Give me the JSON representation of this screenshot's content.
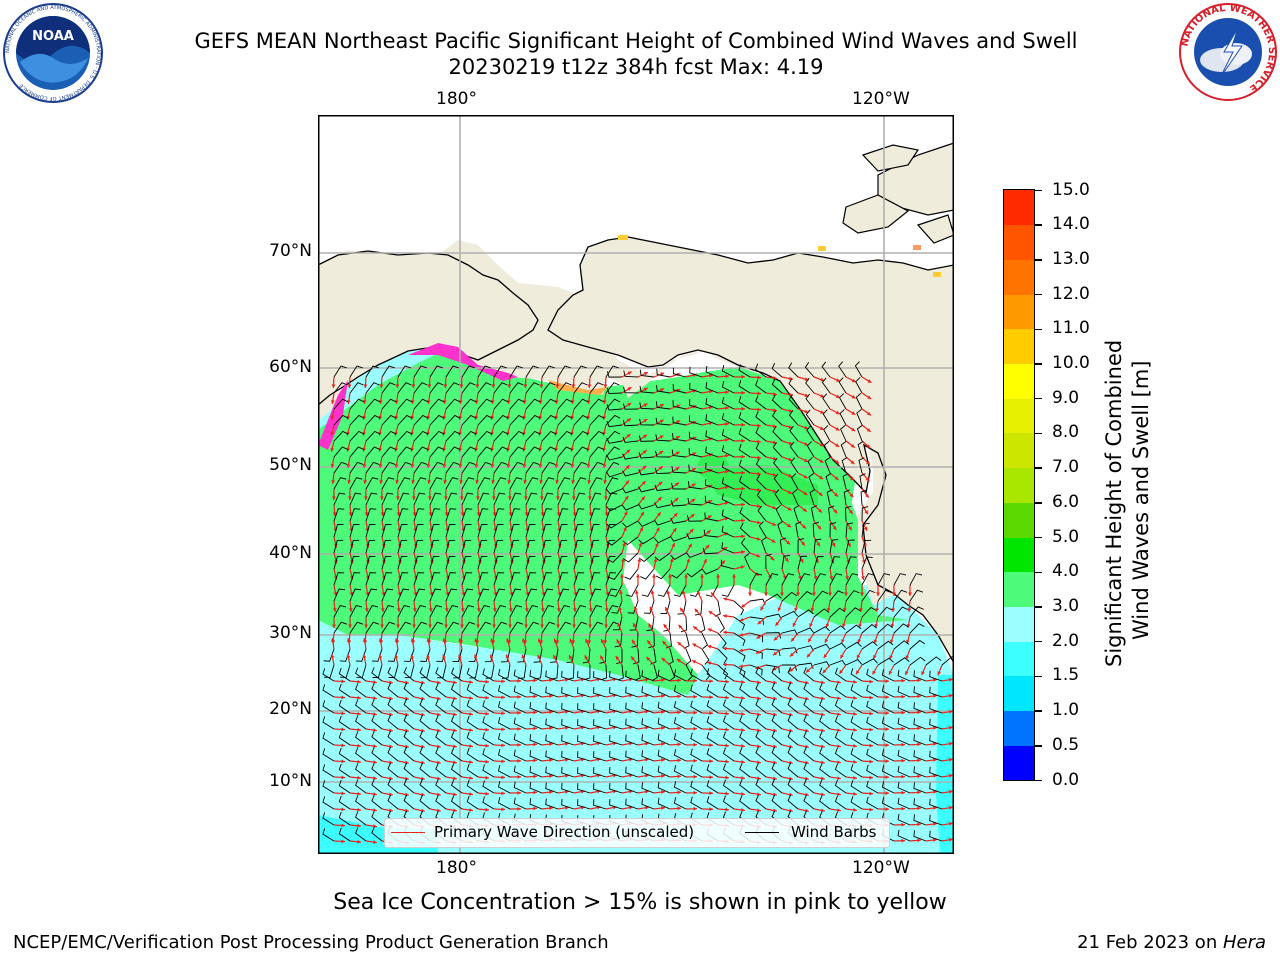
{
  "header": {
    "title_line1": "GEFS MEAN Northeast Pacific Significant Height of Combined Wind Waves and Swell",
    "title_line2": "20230219 t12z 384h fcst   Max: 4.19"
  },
  "logos": {
    "noaa": {
      "icon": "noaa-logo-icon",
      "text": "NOAA",
      "ring_text": "NATIONAL OCEANIC AND ATMOSPHERIC ADMINISTRATION · U.S. DEPARTMENT OF COMMERCE"
    },
    "nws": {
      "icon": "nws-logo-icon",
      "ring_text": "NATIONAL WEATHER SERVICE"
    }
  },
  "map": {
    "lon_labels": [
      "180°",
      "120°W"
    ],
    "lat_labels": [
      "70°N",
      "60°N",
      "50°N",
      "40°N",
      "30°N",
      "20°N",
      "10°N"
    ],
    "colors": {
      "land": "#efecdc",
      "grid": "#b0b0b0",
      "wave_arrow": "#e8231c",
      "wind_barb": "#000000",
      "sea_ice": "#ff33cc"
    },
    "legend": {
      "wave_label": "Primary Wave Direction (unscaled)",
      "wind_label": "Wind Barbs"
    }
  },
  "colorbar": {
    "title_line1": "Significant Height of Combined",
    "title_line2": "Wind Waves and Swell [m]",
    "ticks": [
      "0.0",
      "0.5",
      "1.0",
      "1.5",
      "2.0",
      "3.0",
      "4.0",
      "5.0",
      "6.0",
      "7.0",
      "8.0",
      "9.0",
      "10.0",
      "11.0",
      "12.0",
      "13.0",
      "14.0",
      "15.0"
    ],
    "colors": [
      "#0000ff",
      "#0073ff",
      "#00e6ff",
      "#3cffff",
      "#9bffff",
      "#4dfa7a",
      "#00e600",
      "#5bd900",
      "#a9e600",
      "#cce600",
      "#e6f000",
      "#ffff00",
      "#ffcc00",
      "#ff9900",
      "#ff7300",
      "#ff5500",
      "#ff2a00",
      "#ff0000"
    ]
  },
  "note": "Sea Ice Concentration > 15% is shown in pink to yellow",
  "footer": {
    "left": "NCEP/EMC/Verification Post Processing Product Generation Branch",
    "right_date": "21 Feb 2023 on ",
    "right_host": "Hera"
  }
}
